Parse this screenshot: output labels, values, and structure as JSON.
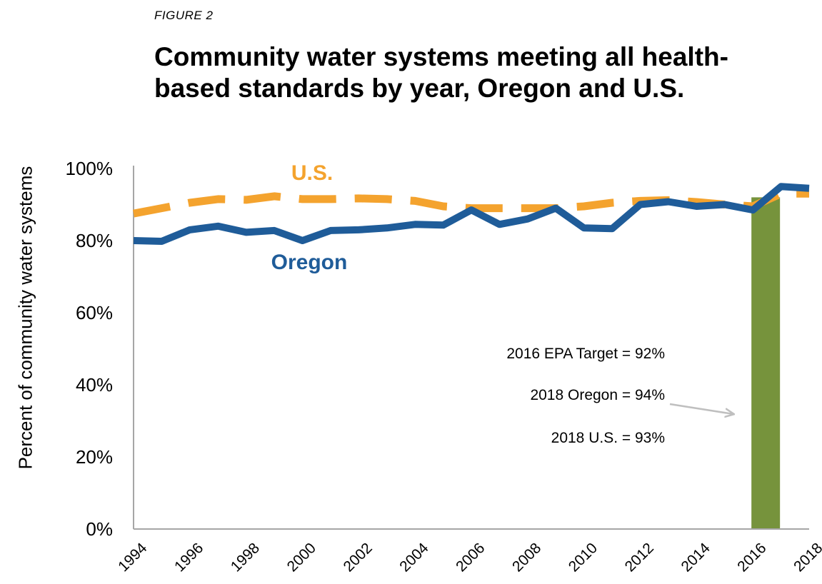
{
  "figure_label": "FIGURE 2",
  "title": "Community water systems meeting all health-based standards by year, Oregon and U.S.",
  "colors": {
    "oregon": "#1F5C99",
    "us": "#F4A32E",
    "target_bar": "#76933C",
    "annotation_arrow": "#BFBFBF",
    "axis": "#A6A6A6"
  },
  "chart_data": {
    "type": "line",
    "title": "Community water systems meeting all health-based standards by year, Oregon and U.S.",
    "ylabel": "Percent of community  water systems",
    "xlabel": "",
    "xlim": [
      1994,
      2018
    ],
    "ylim": [
      0,
      100
    ],
    "y_ticks": [
      "0%",
      "20%",
      "40%",
      "60%",
      "80%",
      "100%"
    ],
    "y_tick_values": [
      0,
      20,
      40,
      60,
      80,
      100
    ],
    "x_ticks": [
      "1994",
      "1996",
      "1998",
      "2000",
      "2002",
      "2004",
      "2006",
      "2008",
      "2010",
      "2012",
      "2014",
      "2016",
      "2018"
    ],
    "x_tick_values": [
      1994,
      1996,
      1998,
      2000,
      2002,
      2004,
      2006,
      2008,
      2010,
      2012,
      2014,
      2016,
      2018
    ],
    "grid": false,
    "series": [
      {
        "name": "U.S.",
        "style": "dashed",
        "x": [
          1994,
          1995,
          1996,
          1997,
          1998,
          1999,
          2000,
          2001,
          2002,
          2003,
          2004,
          2005,
          2006,
          2007,
          2008,
          2009,
          2010,
          2011,
          2012,
          2013,
          2014,
          2015,
          2016,
          2017,
          2018
        ],
        "values": [
          87.5,
          89,
          90.5,
          91.5,
          91.3,
          92.3,
          91.5,
          91.5,
          91.7,
          91.5,
          91,
          89.5,
          89,
          89,
          89,
          89,
          89.5,
          90.5,
          91,
          91.2,
          90.7,
          90,
          89.5,
          93,
          93
        ]
      },
      {
        "name": "Oregon",
        "style": "solid",
        "x": [
          1994,
          1995,
          1996,
          1997,
          1998,
          1999,
          2000,
          2001,
          2002,
          2003,
          2004,
          2005,
          2006,
          2007,
          2008,
          2009,
          2010,
          2011,
          2012,
          2013,
          2014,
          2015,
          2016,
          2017,
          2018
        ],
        "values": [
          80,
          79.8,
          83,
          84,
          82.3,
          82.8,
          80,
          82.8,
          83,
          83.5,
          84.5,
          84.3,
          88.5,
          84.5,
          86,
          89,
          83.5,
          83.3,
          90,
          90.8,
          89.5,
          90,
          88.5,
          95,
          94.5
        ]
      }
    ],
    "target_bar": {
      "year": 2016,
      "value": 92
    },
    "annotations": {
      "us_label": "U.S.",
      "oregon_label": "Oregon",
      "target_text": "2016 EPA Target = 92%",
      "oregon_2018_text": "2018 Oregon = 94%",
      "us_2018_text": "2018 U.S. = 93%"
    }
  }
}
